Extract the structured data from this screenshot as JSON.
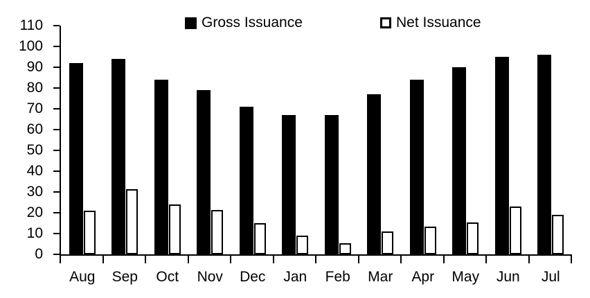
{
  "chart_data": {
    "type": "bar",
    "title": "",
    "categories": [
      "Aug",
      "Sep",
      "Oct",
      "Nov",
      "Dec",
      "Jan",
      "Feb",
      "Mar",
      "Apr",
      "May",
      "Jun",
      "Jul"
    ],
    "series": [
      {
        "name": "Gross Issuance",
        "values": [
          92,
          94,
          84,
          79,
          71,
          67,
          67,
          77,
          84,
          90,
          95,
          96
        ],
        "fill": "#000000"
      },
      {
        "name": "Net Issuance",
        "values": [
          21,
          31.5,
          24,
          21.5,
          15,
          9,
          5.5,
          11,
          13.5,
          15.5,
          23,
          19
        ],
        "fill": "#ffffff",
        "border": "#000000"
      }
    ],
    "ylim": [
      0,
      110
    ],
    "ytick_step": 10,
    "ytick_labels": [
      "0",
      "10",
      "20",
      "30",
      "40",
      "50",
      "60",
      "70",
      "80",
      "90",
      "100",
      "110"
    ],
    "grid": false,
    "legend_position": "top"
  },
  "colors": {
    "bar_black": "#000000",
    "bar_white_fill": "#ffffff",
    "axis": "#000000",
    "text": "#000000",
    "background": "#ffffff"
  }
}
